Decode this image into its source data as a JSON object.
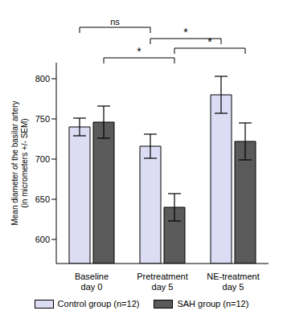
{
  "chart_data": {
    "type": "bar",
    "y_label": "Mean diameter of the basilar artery\n(in micrometers +/- SEM)",
    "categories": [
      "Baseline\nday 0",
      "Pretreatment\nday 5",
      "NE-treatment\nday 5"
    ],
    "series": [
      {
        "name": "Control group (n=12)",
        "color": "#dcdcf5",
        "values": [
          740,
          716,
          780
        ],
        "errors": [
          11,
          15,
          23
        ]
      },
      {
        "name": "SAH group (n=12)",
        "color": "#5a5a5a",
        "values": [
          746,
          640,
          722
        ],
        "errors": [
          20,
          17,
          23
        ]
      }
    ],
    "ylim": [
      570,
      820
    ],
    "yticks": [
      600,
      650,
      700,
      750,
      800
    ],
    "grid": false,
    "legend": "bottom",
    "comparisons": [
      {
        "label": "ns",
        "series": 0,
        "from": 0,
        "to": 1
      },
      {
        "label": "*",
        "series": 0,
        "from": 1,
        "to": 2
      },
      {
        "label": "*",
        "series": 1,
        "from": 0,
        "to": 1
      },
      {
        "label": "*",
        "series": 1,
        "from": 1,
        "to": 2
      }
    ]
  }
}
